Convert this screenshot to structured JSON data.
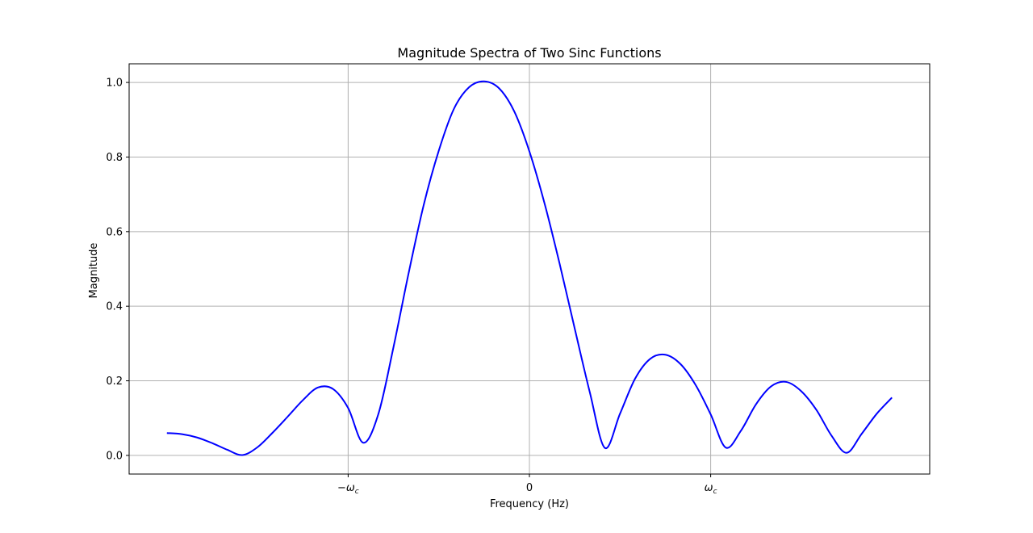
{
  "chart_data": {
    "type": "line",
    "title": "Magnitude Spectra of Two Sinc Functions",
    "xlabel": "Frequency (Hz)",
    "ylabel": "Magnitude",
    "ylim": [
      -0.05,
      1.05
    ],
    "xlim": [
      -2.65,
      2.65
    ],
    "grid": true,
    "line_color": "#0000ff",
    "grid_color": "#b0b0b0",
    "x_ticks": [
      {
        "value": -1.2,
        "label": "−ω",
        "sub": "c"
      },
      {
        "value": 0,
        "label": "0",
        "sub": ""
      },
      {
        "value": 1.2,
        "label": "ω",
        "sub": "c"
      }
    ],
    "y_ticks": [
      {
        "value": 0.0,
        "label": "0.0"
      },
      {
        "value": 0.2,
        "label": "0.2"
      },
      {
        "value": 0.4,
        "label": "0.4"
      },
      {
        "value": 0.6,
        "label": "0.6"
      },
      {
        "value": 0.8,
        "label": "0.8"
      },
      {
        "value": 1.0,
        "label": "1.0"
      }
    ],
    "series": [
      {
        "x": [
          -2.4,
          -2.3,
          -2.2,
          -2.1,
          -2.0,
          -1.9,
          -1.8,
          -1.7,
          -1.6,
          -1.5,
          -1.4,
          -1.3,
          -1.2,
          -1.1,
          -1.0,
          -0.9,
          -0.8,
          -0.7,
          -0.6,
          -0.5,
          -0.4,
          -0.3,
          -0.2,
          -0.1,
          0.0,
          0.1,
          0.2,
          0.3,
          0.4,
          0.5,
          0.6,
          0.7,
          0.8,
          0.9,
          1.0,
          1.1,
          1.2,
          1.3,
          1.4,
          1.5,
          1.6,
          1.7,
          1.8,
          1.9,
          2.0,
          2.1,
          2.2,
          2.3,
          2.4
        ],
        "y": [
          0.06,
          0.057,
          0.048,
          0.033,
          0.015,
          0.001,
          0.022,
          0.061,
          0.104,
          0.148,
          0.182,
          0.178,
          0.127,
          0.034,
          0.111,
          0.29,
          0.488,
          0.671,
          0.817,
          0.929,
          0.987,
          1.003,
          0.984,
          0.922,
          0.815,
          0.676,
          0.514,
          0.34,
          0.169,
          0.02,
          0.112,
          0.206,
          0.259,
          0.27,
          0.245,
          0.189,
          0.11,
          0.021,
          0.066,
          0.137,
          0.185,
          0.197,
          0.172,
          0.122,
          0.053,
          0.007,
          0.058,
          0.112,
          0.155
        ]
      }
    ]
  }
}
